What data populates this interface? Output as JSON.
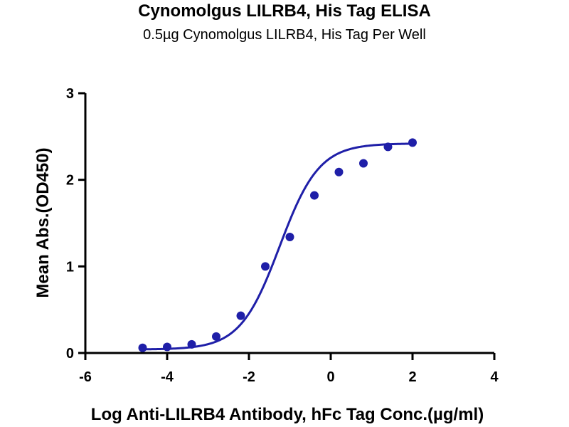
{
  "chart_data": {
    "type": "scatter",
    "title": "Cynomolgus LILRB4, His Tag ELISA",
    "subtitle": "0.5µg Cynomolgus LILRB4, His Tag Per Well",
    "xlabel": "Log Anti-LILRB4 Antibody, hFc Tag Conc.(µg/ml)",
    "ylabel": "Mean Abs.(OD450)",
    "xlim": [
      -6,
      4
    ],
    "ylim": [
      0,
      3
    ],
    "xticks": [
      "-6",
      "-4",
      "-2",
      "0",
      "2",
      "4"
    ],
    "yticks": [
      "0",
      "1",
      "2",
      "3"
    ],
    "grid": false,
    "color": "#1F1FA8",
    "series": [
      {
        "x": [
          -4.6,
          -4.0,
          -3.4,
          -2.8,
          -2.2,
          -1.6,
          -1.0,
          -0.4,
          0.2,
          0.8,
          1.4,
          2.0
        ],
        "y": [
          0.06,
          0.07,
          0.1,
          0.19,
          0.43,
          1.0,
          1.34,
          1.82,
          2.09,
          2.19,
          2.38,
          2.43
        ],
        "fit": "four-parameter logistic"
      }
    ],
    "fit_params": {
      "bottom": 0.04,
      "top": 2.42,
      "log_ec50": -1.25,
      "hill_slope": 0.9
    }
  }
}
